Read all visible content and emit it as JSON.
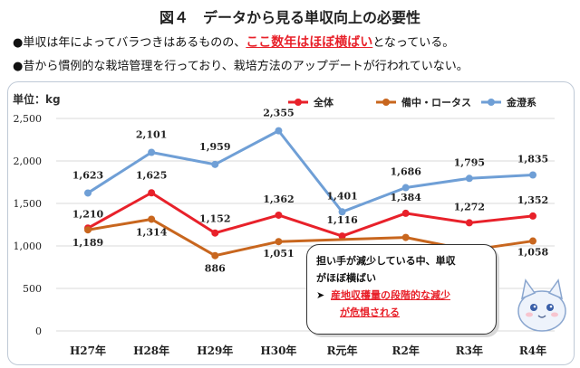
{
  "title": "図４　データから見る単収向上の必要性",
  "bullets": {
    "b1_pre": "●単収は年によってバラつきはあるものの、",
    "b1_hl": "ここ数年はほぼ横ばい",
    "b1_post": "となっている。",
    "b2": "●昔から慣例的な栽培管理を行っており、栽培方法のアップデートが行われていない。"
  },
  "annotation": {
    "line1": "担い手が減少している中、単収",
    "line2": "がほぼ横ばい",
    "arrow": "➤",
    "line3": "産地収穫量の段階的な減少",
    "line4": "が危惧される"
  },
  "colors": {
    "全体": "#e8212a",
    "備中・ロータス": "#c8661e",
    "金澄系": "#6f9fd6"
  },
  "chart_data": {
    "type": "line",
    "ylabel": "単位：kg",
    "ylim": [
      0,
      2500
    ],
    "yticks": [
      "2,500",
      "2,000",
      "1,500",
      "1,000",
      "500",
      "0"
    ],
    "ytick_values": [
      2500,
      2000,
      1500,
      1000,
      500,
      0
    ],
    "grid": true,
    "legend": "top-right",
    "categories": [
      "H27年",
      "H28年",
      "H29年",
      "H30年",
      "R元年",
      "R2年",
      "R3年",
      "R4年"
    ],
    "series": [
      {
        "name": "全体",
        "values": [
          1210,
          1625,
          1152,
          1362,
          1116,
          1384,
          1272,
          1352
        ],
        "labels": [
          "1,210",
          "1,625",
          "1,152",
          "1,362",
          "1,116",
          "1,384",
          "1,272",
          "1,352"
        ]
      },
      {
        "name": "備中・ロータス",
        "values": [
          1189,
          1314,
          886,
          1051,
          null,
          1100,
          950,
          1058
        ],
        "labels": [
          "1,189",
          "1,314",
          "886",
          "1,051",
          "",
          "",
          "",
          "1,058"
        ]
      },
      {
        "name": "金澄系",
        "values": [
          1623,
          2101,
          1959,
          2355,
          1401,
          1686,
          1795,
          1835
        ],
        "labels": [
          "1,623",
          "2,101",
          "1,959",
          "2,355",
          "1,401",
          "1,686",
          "1,795",
          "1,835"
        ]
      }
    ]
  }
}
